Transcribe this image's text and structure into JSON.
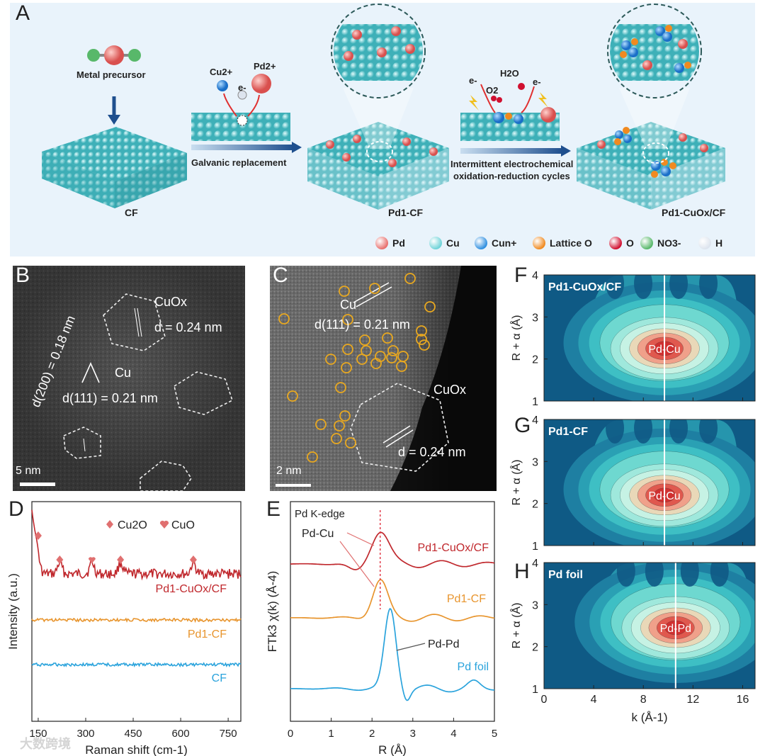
{
  "panels": {
    "a": "A",
    "b": "B",
    "c": "C",
    "d": "D",
    "e": "E",
    "f": "F",
    "g": "G",
    "h": "H"
  },
  "schematic": {
    "metal_precursor": "Metal precursor",
    "cu_ion": "Cu2+",
    "pd_ion": "Pd2+",
    "electron": "e-",
    "galvanic": "Galvanic replacement",
    "intermittent_1": "Intermittent electrochemical",
    "intermittent_2": "oxidation-reduction cycles",
    "o2": "O2",
    "h2o": "H2O",
    "cf": "CF",
    "pd1_cf": "Pd1-CF",
    "pd1_cuox_cf": "Pd1-CuOx/CF",
    "legend": [
      {
        "label": "Pd",
        "color": "#e8706e"
      },
      {
        "label": "Cu",
        "color": "#6fd3d8"
      },
      {
        "label": "Cun+",
        "color": "#2f8fe0"
      },
      {
        "label": "Lattice O",
        "color": "#f08a20"
      },
      {
        "label": "O",
        "color": "#d01030"
      },
      {
        "label": "NO3-",
        "color": "#58b86a"
      },
      {
        "label": "H",
        "color": "#dde4ee"
      }
    ]
  },
  "tem_b": {
    "cuox": "CuOx",
    "d024": "d = 0.24 nm",
    "d200": "d(200) = 0.18 nm",
    "cu": "Cu",
    "d111": "d(111) = 0.21 nm",
    "scale": "5 nm"
  },
  "tem_c": {
    "cu": "Cu",
    "d111": "d(111) = 0.21 nm",
    "cuox": "CuOx",
    "d024": "d = 0.24 nm",
    "scale": "2 nm"
  },
  "chart_data": [
    {
      "type": "line",
      "panel": "D",
      "xlabel": "Raman shift (cm-1)",
      "ylabel": "Intensity (a.u.)",
      "xlim": [
        130,
        790
      ],
      "xticks": [
        150,
        300,
        450,
        600,
        750
      ],
      "legend": [
        "Cu2O",
        "CuO"
      ],
      "series": [
        {
          "name": "Pd1-CuOx/CF",
          "color": "#c0282d"
        },
        {
          "name": "Pd1-CF",
          "color": "#e8952e"
        },
        {
          "name": "CF",
          "color": "#2aa3dc"
        }
      ],
      "markers": [
        {
          "x": 150,
          "kind": "Cu2O"
        },
        {
          "x": 218,
          "kind": "Cu2O"
        },
        {
          "x": 320,
          "kind": "CuO"
        },
        {
          "x": 410,
          "kind": "Cu2O"
        },
        {
          "x": 640,
          "kind": "Cu2O"
        }
      ]
    },
    {
      "type": "line",
      "panel": "E",
      "title": "Pd K-edge",
      "xlabel": "R (Å)",
      "ylabel": "FTk3 χ(k) (Å-4)",
      "xlim": [
        0,
        5
      ],
      "xticks": [
        0,
        1,
        2,
        3,
        4,
        5
      ],
      "annotations": [
        "Pd-Cu",
        "Pd-Pd"
      ],
      "series": [
        {
          "name": "Pd1-CuOx/CF",
          "color": "#c0282d",
          "peak": 2.2
        },
        {
          "name": "Pd1-CF",
          "color": "#e8952e",
          "peak": 2.2
        },
        {
          "name": "Pd foil",
          "color": "#2aa3dc",
          "peak": 2.45
        }
      ]
    },
    {
      "type": "heatmap",
      "panels": [
        {
          "panel": "F",
          "label": "Pd1-CuOx/CF",
          "peak": "Pd-Cu",
          "k_line": 9.7,
          "center_R": 2.25
        },
        {
          "panel": "G",
          "label": "Pd1-CF",
          "peak": "Pd-Cu",
          "k_line": 9.7,
          "center_R": 2.2
        },
        {
          "panel": "H",
          "label": "Pd foil",
          "peak": "Pd-Pd",
          "k_line": 10.6,
          "center_R": 2.45
        }
      ],
      "ylabel": "R + α (Å)",
      "xlabel": "k (Å-1)",
      "ylim": [
        1,
        4
      ],
      "yticks": [
        1,
        2,
        3,
        4
      ],
      "xlim": [
        0,
        17
      ],
      "xticks": [
        0,
        4,
        8,
        12,
        16
      ]
    }
  ],
  "watermark": "大数跨境"
}
